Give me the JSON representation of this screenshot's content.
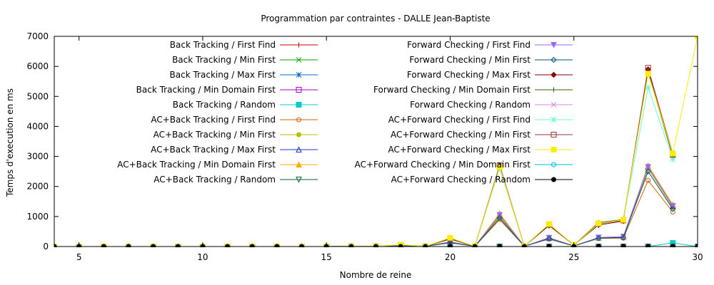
{
  "chart_data": {
    "type": "line",
    "title": "Programmation par contraintes - DALLE Jean-Baptiste",
    "xlabel": "Nombre de reine",
    "ylabel": "Temps d'execution en ms",
    "xlim": [
      4,
      30
    ],
    "ylim": [
      0,
      7000
    ],
    "xticks": [
      5,
      10,
      15,
      20,
      25,
      30
    ],
    "yticks": [
      0,
      1000,
      2000,
      3000,
      4000,
      5000,
      6000,
      7000
    ],
    "grid": false,
    "legend_position": "top",
    "x": [
      4,
      5,
      6,
      7,
      8,
      9,
      10,
      11,
      12,
      13,
      14,
      15,
      16,
      17,
      18,
      19,
      20,
      21,
      22,
      23,
      24,
      25,
      26,
      27,
      28,
      29,
      30
    ],
    "series": [
      {
        "name": "Back Tracking / First Find",
        "color": "#cc0000",
        "marker": "plus",
        "values": [
          0,
          0,
          0,
          0,
          0,
          0,
          0,
          0,
          0,
          0,
          0,
          0,
          0,
          0,
          0,
          0,
          0,
          0,
          0,
          0,
          0,
          0,
          0,
          0,
          0,
          0,
          0
        ]
      },
      {
        "name": "Back Tracking / Min First",
        "color": "#00aa00",
        "marker": "x",
        "values": [
          0,
          0,
          0,
          0,
          0,
          0,
          0,
          0,
          0,
          0,
          0,
          0,
          0,
          0,
          0,
          0,
          0,
          0,
          0,
          0,
          0,
          0,
          0,
          0,
          0,
          0,
          0
        ]
      },
      {
        "name": "Back Tracking / Max First",
        "color": "#0066cc",
        "marker": "star",
        "values": [
          0,
          0,
          0,
          0,
          0,
          0,
          0,
          0,
          0,
          0,
          0,
          0,
          0,
          0,
          0,
          0,
          0,
          0,
          0,
          0,
          0,
          0,
          0,
          0,
          0,
          0,
          0
        ]
      },
      {
        "name": "Back Tracking / Min Domain First",
        "color": "#aa00cc",
        "marker": "square",
        "values": [
          0,
          0,
          0,
          0,
          0,
          0,
          0,
          0,
          0,
          0,
          0,
          0,
          0,
          0,
          0,
          0,
          0,
          0,
          0,
          0,
          0,
          0,
          0,
          0,
          0,
          0,
          0
        ]
      },
      {
        "name": "Back Tracking / Random",
        "color": "#00cccc",
        "marker": "square-filled",
        "values": [
          0,
          0,
          0,
          0,
          0,
          0,
          0,
          0,
          0,
          0,
          0,
          0,
          0,
          0,
          0,
          0,
          0,
          0,
          0,
          0,
          0,
          0,
          0,
          0,
          0,
          120,
          0
        ]
      },
      {
        "name": "AC+Back Tracking / First Find",
        "color": "#cc6600",
        "marker": "circle",
        "values": [
          0,
          0,
          0,
          0,
          0,
          0,
          0,
          0,
          0,
          0,
          0,
          0,
          5,
          10,
          20,
          10,
          120,
          10,
          900,
          10,
          250,
          20,
          270,
          280,
          2200,
          1150,
          null
        ]
      },
      {
        "name": "AC+Back Tracking / Min First",
        "color": "#bbbb00",
        "marker": "circle-filled",
        "values": [
          0,
          0,
          0,
          0,
          0,
          0,
          0,
          0,
          0,
          0,
          0,
          0,
          5,
          10,
          25,
          10,
          140,
          10,
          1000,
          10,
          270,
          20,
          280,
          300,
          2600,
          1300,
          null
        ]
      },
      {
        "name": "AC+Back Tracking / Max First",
        "color": "#2233cc",
        "marker": "triangle",
        "values": [
          0,
          0,
          0,
          0,
          0,
          0,
          0,
          0,
          0,
          0,
          0,
          0,
          5,
          10,
          25,
          10,
          150,
          10,
          1050,
          10,
          280,
          20,
          290,
          320,
          2650,
          1350,
          null
        ]
      },
      {
        "name": "AC+Back Tracking / Min Domain First",
        "color": "#ffaa00",
        "marker": "triangle-filled",
        "values": [
          0,
          0,
          0,
          0,
          0,
          0,
          0,
          0,
          0,
          0,
          0,
          0,
          5,
          10,
          30,
          10,
          160,
          10,
          1100,
          10,
          300,
          20,
          300,
          330,
          2700,
          1400,
          null
        ]
      },
      {
        "name": "AC+Back Tracking / Random",
        "color": "#006633",
        "marker": "triangle-down",
        "values": [
          0,
          0,
          0,
          0,
          0,
          0,
          0,
          0,
          0,
          0,
          0,
          0,
          0,
          0,
          0,
          0,
          0,
          0,
          0,
          0,
          0,
          0,
          0,
          0,
          0,
          0,
          0
        ]
      },
      {
        "name": "Forward Checking / First Find",
        "color": "#9966ff",
        "marker": "triangle-down-filled",
        "values": [
          0,
          0,
          0,
          0,
          0,
          0,
          0,
          0,
          0,
          0,
          0,
          0,
          5,
          10,
          25,
          10,
          150,
          10,
          1050,
          10,
          290,
          20,
          300,
          330,
          2650,
          1350,
          null
        ]
      },
      {
        "name": "Forward Checking / Min First",
        "color": "#005577",
        "marker": "diamond",
        "values": [
          0,
          0,
          0,
          0,
          0,
          0,
          0,
          0,
          0,
          0,
          0,
          0,
          5,
          10,
          20,
          10,
          130,
          10,
          950,
          10,
          260,
          20,
          280,
          300,
          2500,
          1250,
          null
        ]
      },
      {
        "name": "Forward Checking / Max First",
        "color": "#880000",
        "marker": "diamond-filled",
        "values": [
          0,
          0,
          0,
          0,
          0,
          0,
          0,
          0,
          0,
          0,
          0,
          0,
          5,
          10,
          50,
          10,
          250,
          10,
          2700,
          10,
          700,
          50,
          720,
          850,
          5900,
          3100,
          null
        ]
      },
      {
        "name": "Forward Checking / Min Domain First",
        "color": "#336600",
        "marker": "plus",
        "values": [
          0,
          0,
          0,
          0,
          0,
          0,
          0,
          0,
          0,
          0,
          0,
          0,
          5,
          10,
          50,
          10,
          260,
          10,
          2650,
          10,
          720,
          50,
          800,
          900,
          5800,
          3000,
          null
        ]
      },
      {
        "name": "Forward Checking / Random",
        "color": "#dd88dd",
        "marker": "x",
        "values": [
          0,
          0,
          0,
          0,
          0,
          0,
          0,
          0,
          0,
          0,
          0,
          0,
          0,
          0,
          0,
          0,
          0,
          0,
          0,
          0,
          0,
          0,
          0,
          0,
          0,
          0,
          0
        ]
      },
      {
        "name": "AC+Forward Checking / First Find",
        "color": "#66ffcc",
        "marker": "star",
        "values": [
          0,
          0,
          0,
          0,
          0,
          0,
          0,
          0,
          0,
          0,
          0,
          0,
          5,
          10,
          60,
          10,
          280,
          10,
          2600,
          10,
          740,
          50,
          750,
          880,
          5300,
          2900,
          null
        ]
      },
      {
        "name": "AC+Forward Checking / Min First",
        "color": "#993333",
        "marker": "square",
        "values": [
          0,
          0,
          0,
          0,
          0,
          0,
          0,
          0,
          0,
          0,
          0,
          0,
          5,
          10,
          55,
          10,
          270,
          10,
          2700,
          10,
          730,
          50,
          760,
          870,
          5950,
          3050,
          null
        ]
      },
      {
        "name": "AC+Forward Checking / Max First",
        "color": "#ffee00",
        "marker": "square-filled",
        "values": [
          0,
          0,
          0,
          0,
          0,
          0,
          0,
          0,
          0,
          0,
          0,
          0,
          5,
          10,
          60,
          10,
          290,
          10,
          2650,
          10,
          750,
          50,
          770,
          890,
          5750,
          3100,
          7000
        ]
      },
      {
        "name": "AC+Forward Checking / Min Domain First",
        "color": "#00bbdd",
        "marker": "circle",
        "values": [
          0,
          0,
          0,
          0,
          0,
          0,
          0,
          0,
          0,
          0,
          0,
          0,
          0,
          0,
          0,
          0,
          0,
          0,
          0,
          0,
          0,
          0,
          0,
          0,
          0,
          0,
          0
        ]
      },
      {
        "name": "AC+Forward Checking / Random",
        "color": "#000000",
        "marker": "circle-filled",
        "values": [
          0,
          0,
          0,
          0,
          0,
          0,
          0,
          0,
          0,
          0,
          0,
          0,
          0,
          0,
          0,
          0,
          0,
          0,
          0,
          0,
          0,
          0,
          0,
          0,
          0,
          0,
          0
        ]
      }
    ]
  }
}
